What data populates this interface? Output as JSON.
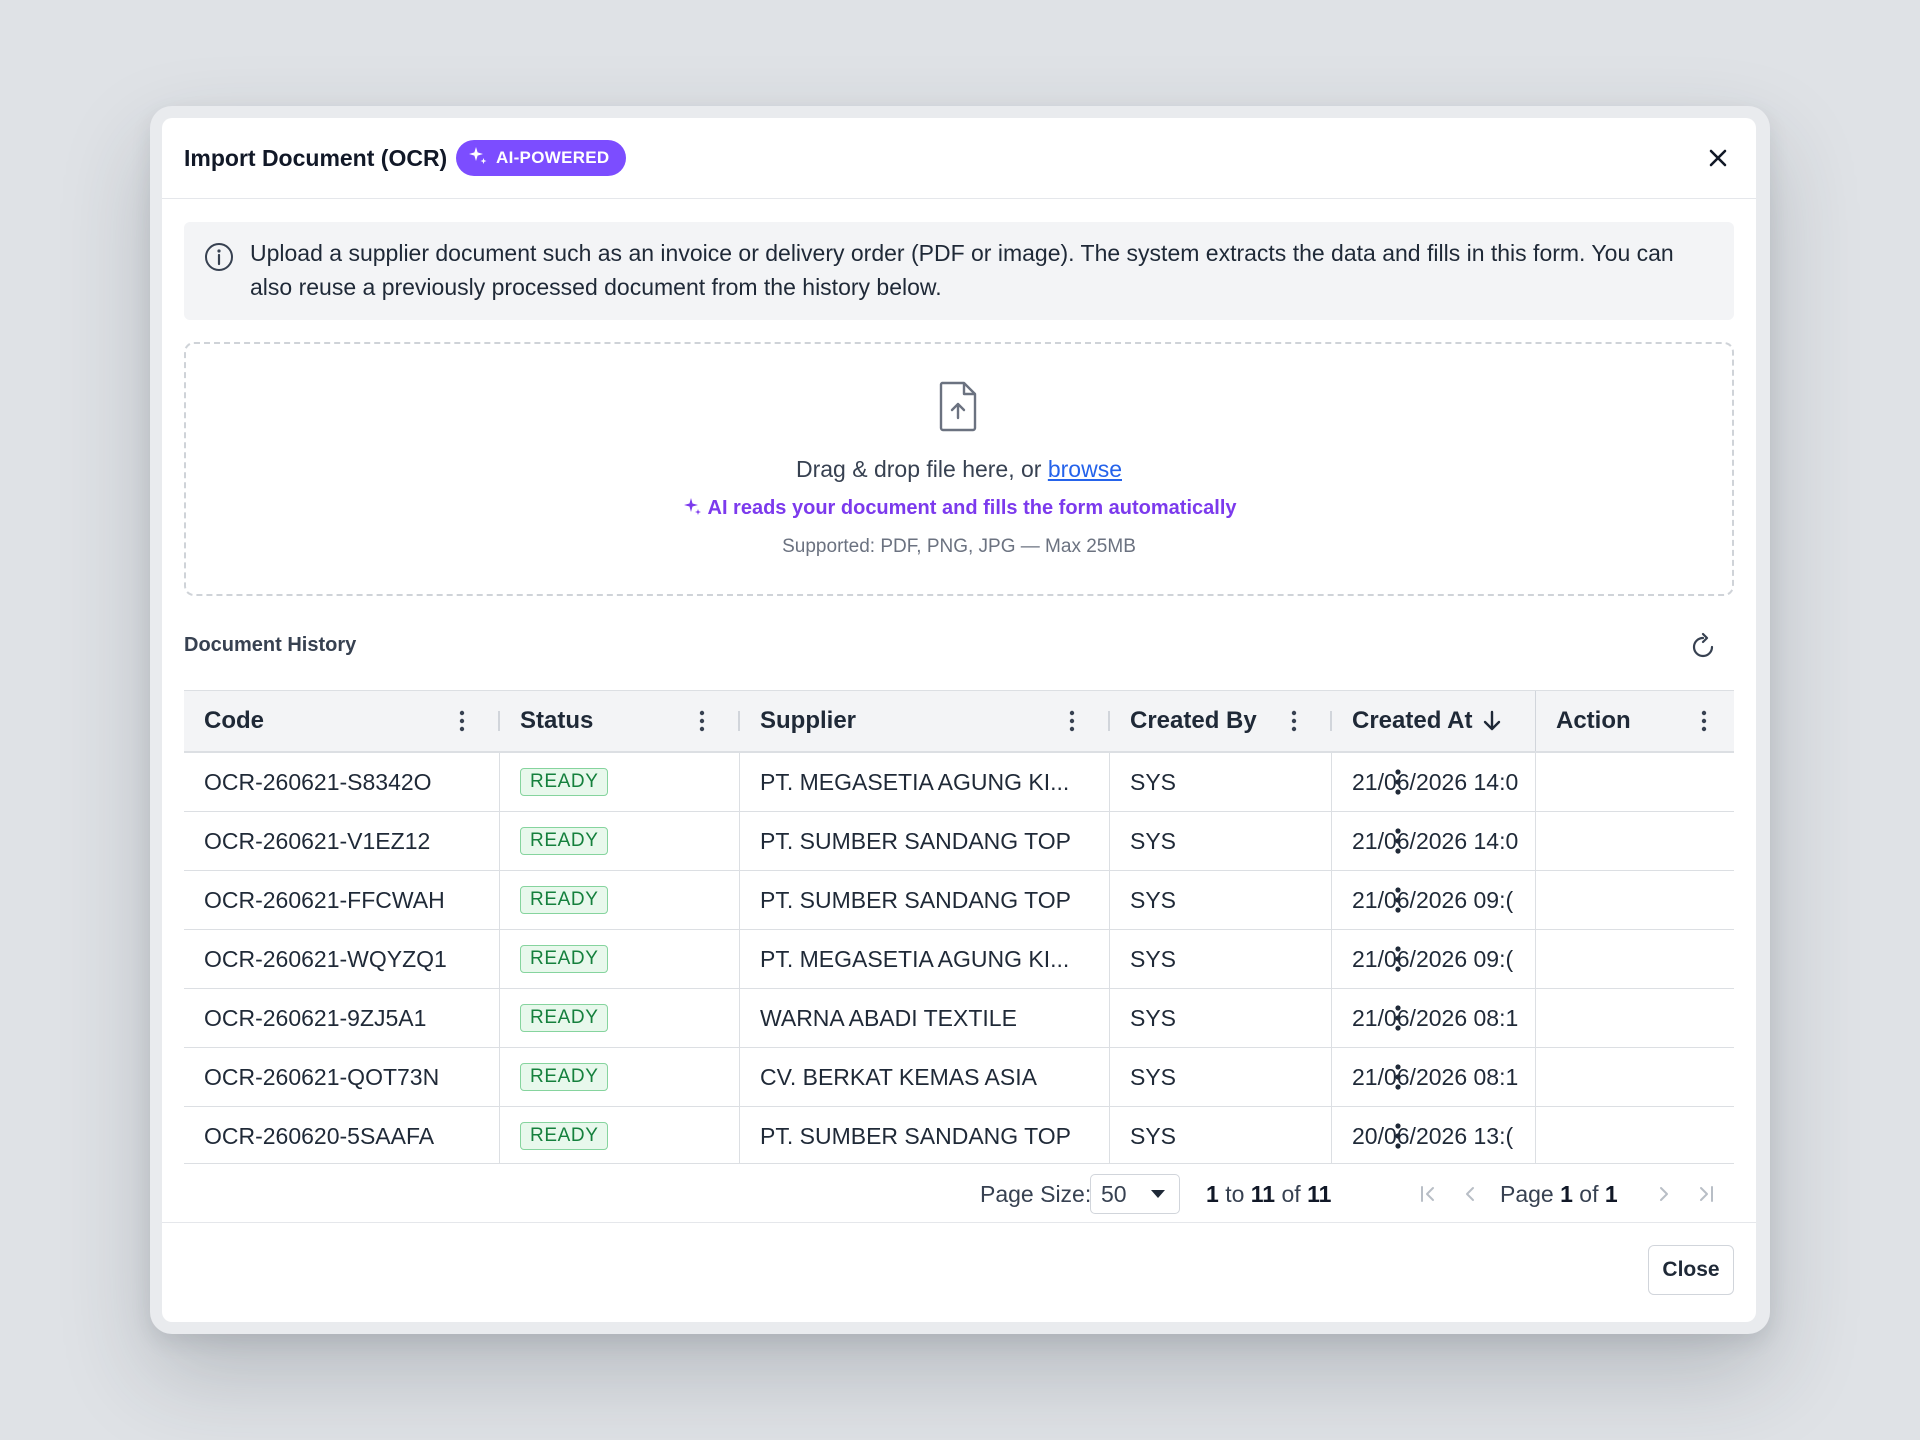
{
  "modal": {
    "title": "Import Document (OCR)",
    "badge": "AI-POWERED",
    "accent_color": "#7c4dff"
  },
  "info": {
    "text": "Upload a supplier document such as an invoice or delivery order (PDF or image). The system extracts the data and fills in this form. You can also reuse a previously processed document from the history below."
  },
  "dropzone": {
    "prompt": "Drag & drop file here, or",
    "browse_label": "browse",
    "ai_hint": "AI reads your document and fills the form automatically",
    "supported": "Supported: PDF, PNG, JPG — Max 25MB"
  },
  "history": {
    "title": "Document History",
    "columns": [
      "Code",
      "Status",
      "Supplier",
      "Created By",
      "Created At",
      "Action"
    ],
    "sorted_column": "Created At",
    "sort_direction": "desc",
    "rows": [
      {
        "code": "OCR-260621-S8342O",
        "status": "READY",
        "supplier": "PT. MEGASETIA AGUNG KI...",
        "created_by": "SYS",
        "created_at": "21/06/2026 14:0"
      },
      {
        "code": "OCR-260621-V1EZ12",
        "status": "READY",
        "supplier": "PT. SUMBER SANDANG TOP",
        "created_by": "SYS",
        "created_at": "21/06/2026 14:0"
      },
      {
        "code": "OCR-260621-FFCWAH",
        "status": "READY",
        "supplier": "PT. SUMBER SANDANG TOP",
        "created_by": "SYS",
        "created_at": "21/06/2026 09:("
      },
      {
        "code": "OCR-260621-WQYZQ1",
        "status": "READY",
        "supplier": "PT. MEGASETIA AGUNG KI...",
        "created_by": "SYS",
        "created_at": "21/06/2026 09:("
      },
      {
        "code": "OCR-260621-9ZJ5A1",
        "status": "READY",
        "supplier": "WARNA ABADI TEXTILE",
        "created_by": "SYS",
        "created_at": "21/06/2026 08:1"
      },
      {
        "code": "OCR-260621-QOT73N",
        "status": "READY",
        "supplier": "CV. BERKAT KEMAS ASIA",
        "created_by": "SYS",
        "created_at": "21/06/2026 08:1"
      },
      {
        "code": "OCR-260620-5SAAFA",
        "status": "READY",
        "supplier": "PT. SUMBER SANDANG TOP",
        "created_by": "SYS",
        "created_at": "20/06/2026 13:("
      }
    ]
  },
  "pagination": {
    "page_size_label": "Page Size:",
    "page_size": "50",
    "range_from": "1",
    "range_to": "11",
    "range_total": "11",
    "to_word": "to",
    "of_word": "of",
    "page_word": "Page",
    "current_page": "1",
    "total_pages": "1"
  },
  "footer": {
    "close_label": "Close"
  }
}
